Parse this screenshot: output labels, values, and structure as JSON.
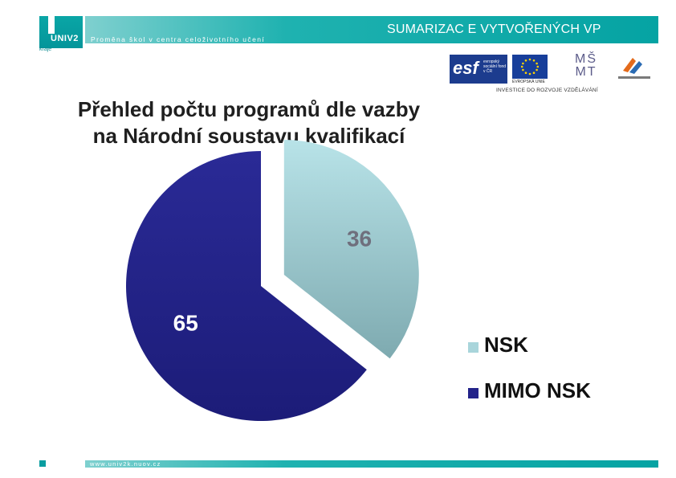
{
  "header": {
    "logo_text": "UNIV2",
    "logo_sub": "kraje",
    "tagline": "Proměna škol v centra celoživotního učení",
    "title": "SUMARIZAC E VYTVOŘENÝCH VP"
  },
  "partners": {
    "esf_big": "esf",
    "esf_small": "evropský sociální fond v ČR",
    "eu_caption": "EVROPSKÁ UNIE",
    "msmt": "MŠ MT",
    "invest_caption": "INVESTICE DO ROZVOJE VZDĚLÁVÁNÍ"
  },
  "slide": {
    "title_line1": "Přehled počtu programů dle vazby",
    "title_line2": "na Národní soustavu kvalifikací"
  },
  "chart_data": {
    "type": "pie",
    "title": "Přehled počtu programů dle vazby na Národní soustavu kvalifikací",
    "slices": [
      {
        "name": "NSK",
        "value": 36,
        "color": "#8fc3ca",
        "exploded": true
      },
      {
        "name": "MIMO NSK",
        "value": 65,
        "color": "#23238a",
        "exploded": false
      }
    ],
    "legend_position": "right"
  },
  "footer": {
    "url": "www.univ2k.nuov.cz"
  }
}
